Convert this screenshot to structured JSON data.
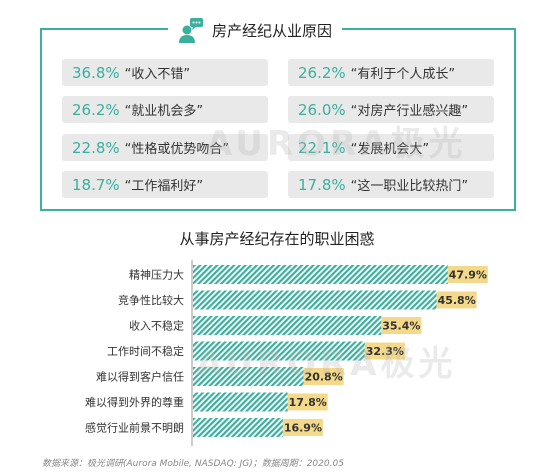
{
  "top_panel": {
    "title": "房产经纪从业原因",
    "reasons": [
      {
        "pct": "36.8%",
        "label": "“收入不错”"
      },
      {
        "pct": "26.2%",
        "label": "“有利于个人成长”"
      },
      {
        "pct": "26.2%",
        "label": "“就业机会多”"
      },
      {
        "pct": "26.0%",
        "label": "“对房产行业感兴趣”"
      },
      {
        "pct": "22.8%",
        "label": "“性格或优势吻合”"
      },
      {
        "pct": "22.1%",
        "label": "“发展机会大”"
      },
      {
        "pct": "18.7%",
        "label": "“工作福利好”"
      },
      {
        "pct": "17.8%",
        "label": "“这一职业比较热门”"
      }
    ]
  },
  "watermark": {
    "text1": "AURORA",
    "text2": "极光"
  },
  "chart_data": {
    "type": "bar",
    "orientation": "horizontal",
    "title": "从事房产经纪存在的职业困惑",
    "categories": [
      "精神压力大",
      "竞争性比较大",
      "收入不稳定",
      "工作时间不稳定",
      "难以得到客户信任",
      "难以得到外界的尊重",
      "感觉行业前景不明朗"
    ],
    "values": [
      47.9,
      45.8,
      35.4,
      32.3,
      20.8,
      17.8,
      16.9
    ],
    "value_labels": [
      "47.9%",
      "45.8%",
      "35.4%",
      "32.3%",
      "20.8%",
      "17.8%",
      "16.9%"
    ],
    "xlim": [
      0,
      50
    ],
    "bar_color": "#3ab09e",
    "label_bg_color": "#f5d98a"
  },
  "source": "数据来源：极光调研(Aurora Mobile, NASDAQ: JG)；数据周期：2020.05",
  "colors": {
    "accent": "#3ab09e",
    "label_bg": "#f5d98a",
    "card_bg": "#e9e9e9"
  }
}
